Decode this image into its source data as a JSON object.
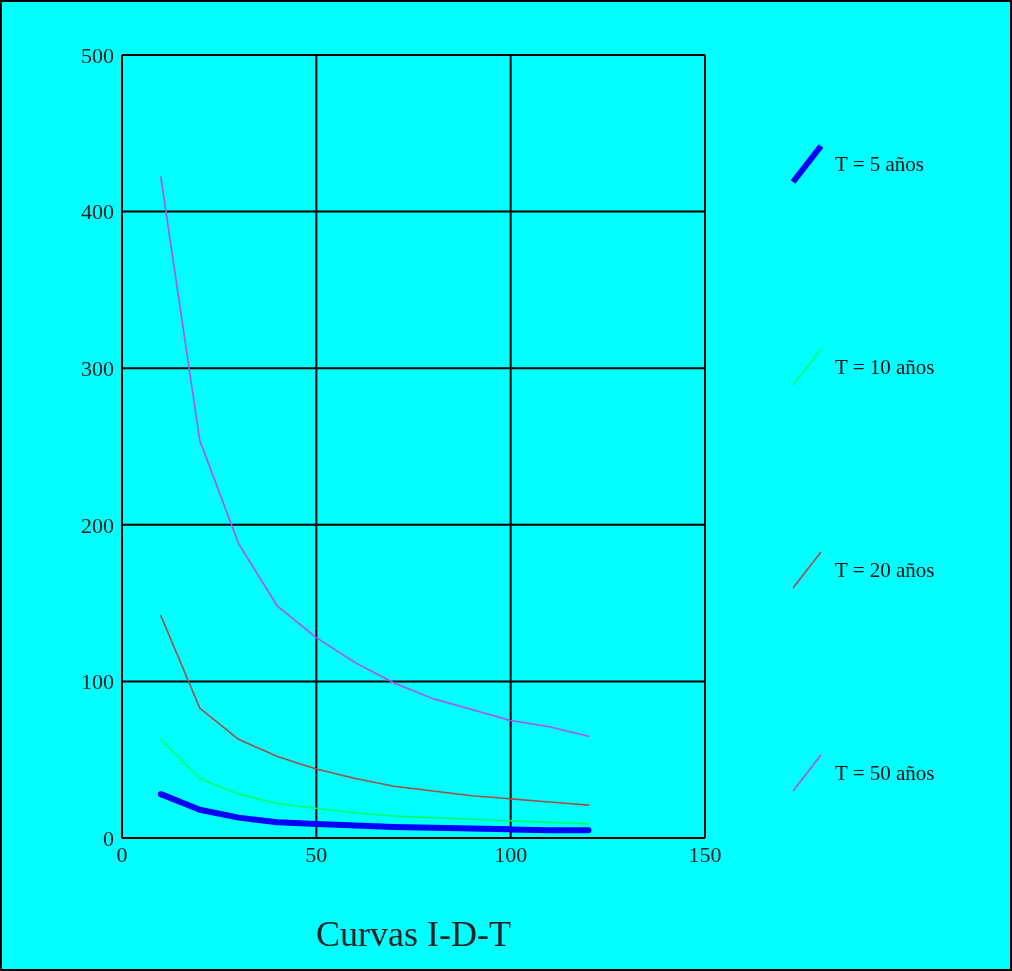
{
  "chart_data": {
    "type": "line",
    "xlabel": "Curvas I-D-T",
    "x": [
      10,
      20,
      30,
      40,
      50,
      60,
      70,
      80,
      90,
      100,
      110,
      120
    ],
    "series": [
      {
        "name": "T = 5 años",
        "color": "#0000ff",
        "values": [
          28,
          18,
          13,
          10,
          9,
          8,
          7,
          6.5,
          6,
          5.5,
          5,
          5
        ]
      },
      {
        "name": "T = 10 años",
        "color": "#00ff66",
        "values": [
          63,
          38,
          28,
          22,
          19,
          16,
          14,
          13,
          12,
          11,
          10,
          9
        ]
      },
      {
        "name": "T = 20 años",
        "color": "#a0504a",
        "values": [
          142,
          83,
          63,
          52,
          44,
          38,
          33,
          30,
          27,
          25,
          23,
          21
        ]
      },
      {
        "name": "T = 50 años",
        "color": "#b050f0",
        "values": [
          422,
          254,
          188,
          148,
          128,
          112,
          99,
          89,
          82,
          75,
          71,
          65
        ]
      }
    ],
    "xlim": [
      0,
      150
    ],
    "xticks": [
      0,
      50,
      100,
      150
    ],
    "ylim": [
      0,
      500
    ],
    "yticks": [
      0,
      100,
      200,
      300,
      400,
      500
    ],
    "grid": true,
    "legend": "right",
    "marker": "none",
    "line_style": "solid"
  }
}
